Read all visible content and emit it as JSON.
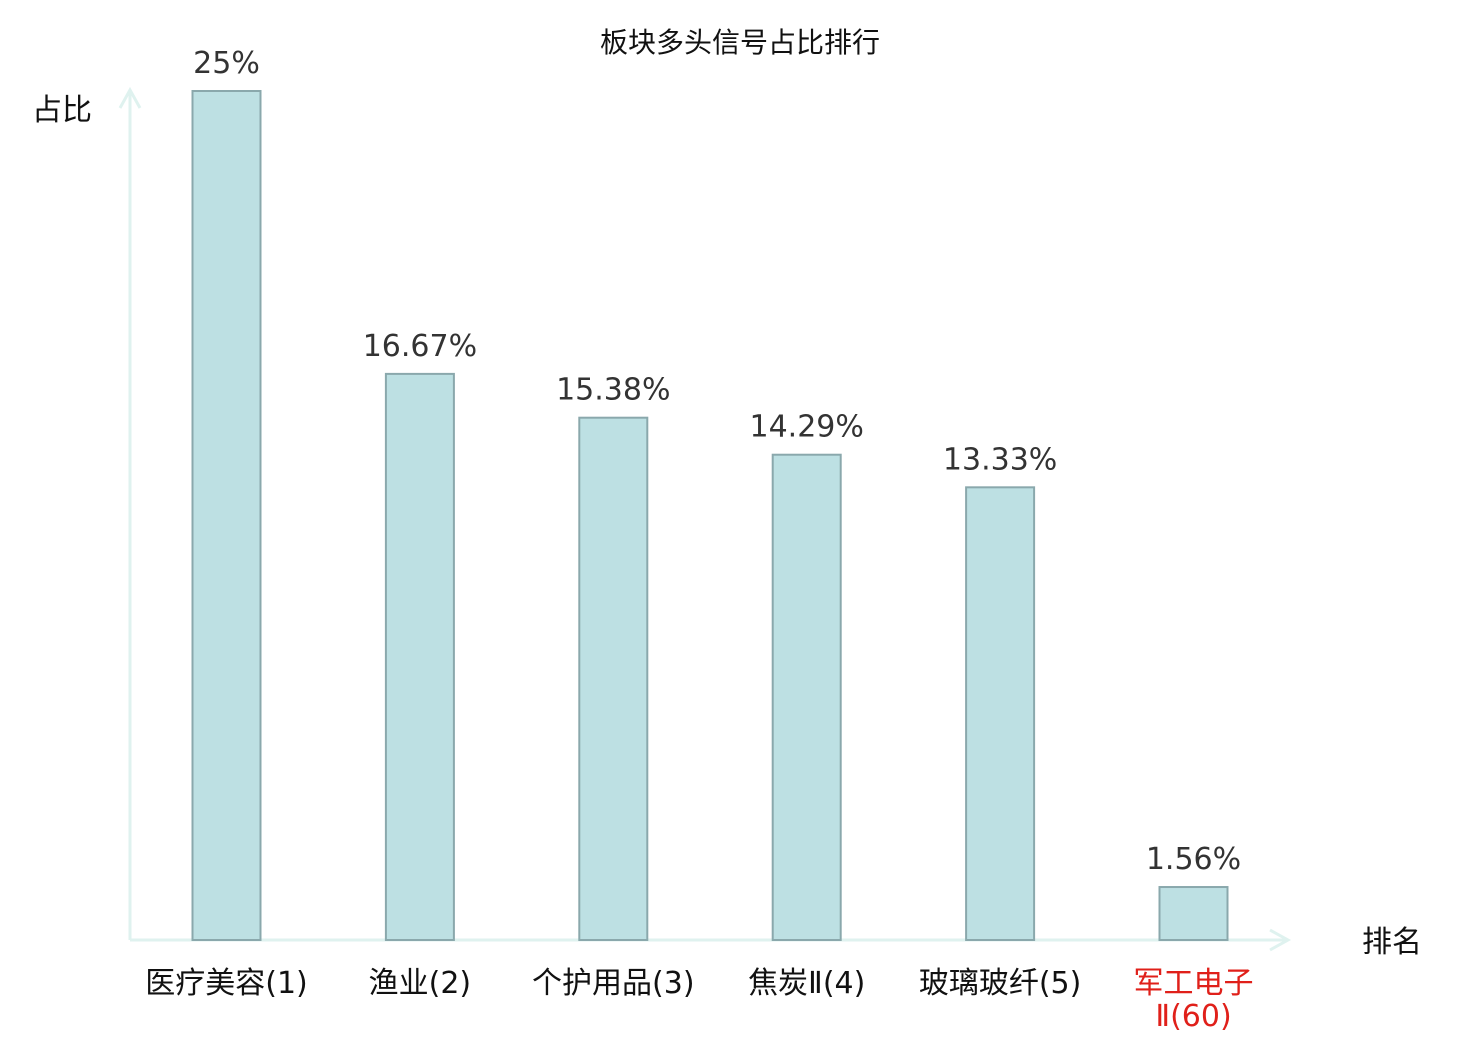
{
  "chart_data": {
    "type": "bar",
    "title": "板块多头信号占比排行",
    "ylabel": "占比",
    "xlabel": "排名",
    "ylim": [
      0,
      25
    ],
    "grid": false,
    "bar_color": "#bde0e3",
    "bar_edge_color": "#8aa8ac",
    "axis_color": "#dff2ef",
    "highlight_color": "#e0201a",
    "categories": [
      {
        "lines": [
          "医疗美容(1)"
        ],
        "highlight": false
      },
      {
        "lines": [
          "渔业(2)"
        ],
        "highlight": false
      },
      {
        "lines": [
          "个护用品(3)"
        ],
        "highlight": false
      },
      {
        "lines": [
          "焦炭Ⅱ(4)"
        ],
        "highlight": false
      },
      {
        "lines": [
          "玻璃玻纤(5)"
        ],
        "highlight": false
      },
      {
        "lines": [
          "军工电子",
          "Ⅱ(60)"
        ],
        "highlight": true
      }
    ],
    "values": [
      25,
      16.67,
      15.38,
      14.29,
      13.33,
      1.56
    ],
    "value_labels": [
      "25%",
      "16.67%",
      "15.38%",
      "14.29%",
      "13.33%",
      "1.56%"
    ]
  }
}
